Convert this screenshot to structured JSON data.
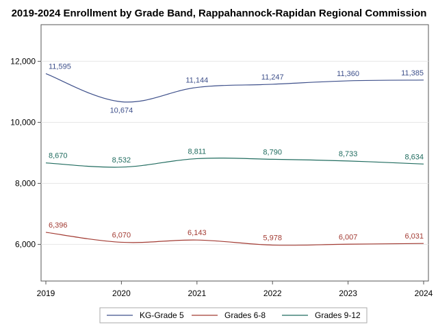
{
  "chart_data": {
    "type": "line",
    "title": "2019-2024 Enrollment by Grade Band, Rappahannock-Rapidan Regional Commission",
    "xlabel": "",
    "ylabel": "",
    "categories": [
      "2019",
      "2020",
      "2021",
      "2022",
      "2023",
      "2024"
    ],
    "ylim": [
      4800,
      13200
    ],
    "yticks": [
      6000,
      8000,
      10000,
      12000
    ],
    "ytick_labels": [
      "6,000",
      "8,000",
      "10,000",
      "12,000"
    ],
    "grid": true,
    "legend_position": "bottom",
    "series": [
      {
        "name": "KG-Grade 5",
        "color": "#3d4f8a",
        "values": [
          11595,
          10674,
          11144,
          11247,
          11360,
          11385
        ],
        "labels": [
          "11,595",
          "10,674",
          "11,144",
          "11,247",
          "11,360",
          "11,385"
        ],
        "label_placement": [
          "above",
          "below",
          "above",
          "above",
          "above",
          "above"
        ]
      },
      {
        "name": "Grades 6-8",
        "color": "#a23a32",
        "values": [
          6396,
          6070,
          6143,
          5978,
          6007,
          6031
        ],
        "labels": [
          "6,396",
          "6,070",
          "6,143",
          "5,978",
          "6,007",
          "6,031"
        ],
        "label_placement": [
          "above",
          "above",
          "above",
          "above",
          "above",
          "above"
        ]
      },
      {
        "name": "Grades 9-12",
        "color": "#1f6b5e",
        "values": [
          8670,
          8532,
          8811,
          8790,
          8733,
          8634
        ],
        "labels": [
          "8,670",
          "8,532",
          "8,811",
          "8,790",
          "8,733",
          "8,634"
        ],
        "label_placement": [
          "above",
          "above",
          "above",
          "above",
          "above",
          "above"
        ]
      }
    ]
  }
}
